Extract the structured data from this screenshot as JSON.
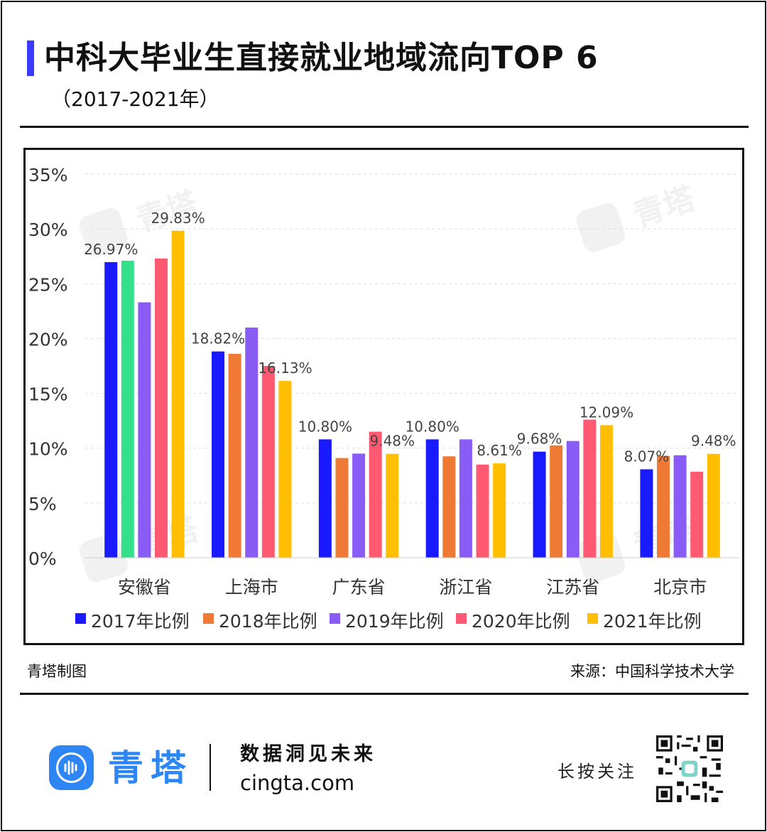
{
  "header": {
    "title": "中科大毕业生直接就业地域流向TOP 6",
    "subtitle": "（2017-2021年）"
  },
  "watermark": {
    "text": "青塔",
    "icon": "cingta-logo-icon"
  },
  "chart_data": {
    "type": "bar",
    "categories": [
      "安徽省",
      "上海市",
      "广东省",
      "浙江省",
      "江苏省",
      "北京市"
    ],
    "series": [
      {
        "name": "2017年比例",
        "color": "#1a1aff",
        "values": [
          26.97,
          18.82,
          10.8,
          10.8,
          9.68,
          8.07
        ]
      },
      {
        "name": "2018年比例",
        "color": "#ef7a35",
        "values": [
          27.1,
          18.6,
          9.1,
          9.25,
          10.25,
          9.3
        ]
      },
      {
        "name": "2019年比例",
        "color": "#8a5cf6",
        "values": [
          23.3,
          21.0,
          9.5,
          10.8,
          10.65,
          9.35
        ]
      },
      {
        "name": "2020年比例",
        "color": "#ff5a72",
        "values": [
          27.3,
          17.5,
          11.5,
          8.5,
          12.6,
          7.85
        ]
      },
      {
        "name": "2021年比例",
        "color": "#ffbf00",
        "values": [
          29.83,
          16.13,
          9.48,
          8.61,
          12.09,
          9.48
        ]
      }
    ],
    "bar_overrides": [
      {
        "category_index": 0,
        "series_index": 1,
        "color": "#34e08a"
      }
    ],
    "data_labels": [
      {
        "category_index": 0,
        "series_index": 0,
        "text": "26.97%"
      },
      {
        "category_index": 0,
        "series_index": 4,
        "text": "29.83%"
      },
      {
        "category_index": 1,
        "series_index": 0,
        "text": "18.82%"
      },
      {
        "category_index": 1,
        "series_index": 4,
        "text": "16.13%"
      },
      {
        "category_index": 2,
        "series_index": 0,
        "text": "10.80%"
      },
      {
        "category_index": 2,
        "series_index": 4,
        "text": "9.48%"
      },
      {
        "category_index": 3,
        "series_index": 0,
        "text": "10.80%"
      },
      {
        "category_index": 3,
        "series_index": 4,
        "text": "8.61%"
      },
      {
        "category_index": 4,
        "series_index": 0,
        "text": "9.68%"
      },
      {
        "category_index": 4,
        "series_index": 4,
        "text": "12.09%"
      },
      {
        "category_index": 5,
        "series_index": 0,
        "text": "8.07%"
      },
      {
        "category_index": 5,
        "series_index": 4,
        "text": "9.48%"
      }
    ],
    "y_ticks": [
      0,
      5,
      10,
      15,
      20,
      25,
      30,
      35
    ],
    "y_tick_labels": [
      "0%",
      "5%",
      "10%",
      "15%",
      "20%",
      "25%",
      "30%",
      "35%"
    ],
    "ylim": [
      0,
      35
    ],
    "grid": true,
    "legend_position": "bottom"
  },
  "footer": {
    "credit": "青塔制图",
    "source": "来源：中国科学技术大学"
  },
  "brand": {
    "name": "青塔",
    "slogan": "数据洞见未来",
    "site": "cingta.com",
    "follow": "长按关注",
    "logo_icon": "cingta-logo-icon",
    "qr_icon": "qr-code-icon",
    "color": "#2e86f5"
  }
}
